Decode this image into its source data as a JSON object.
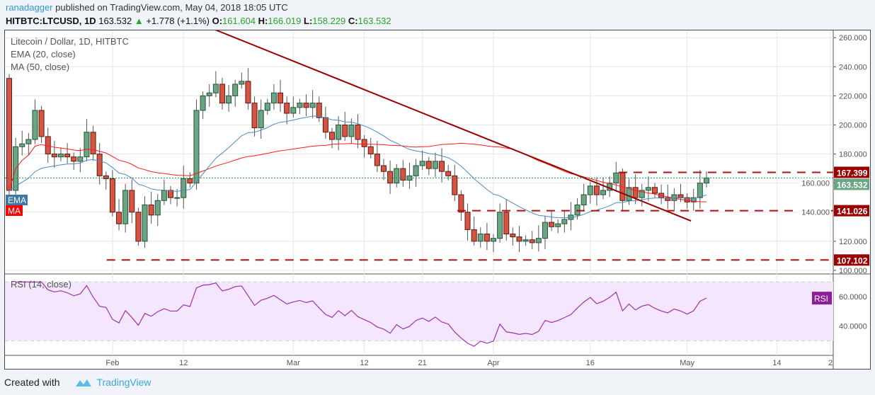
{
  "header": {
    "author": "ranadagger",
    "published": "published on TradingView.com, May 04, 2018 18:05 UTC",
    "symbol": "HITBTC:LTCUSD, 1D",
    "last": "163.532",
    "change": "+1.778 (+1.1%)",
    "o_label": "O:",
    "o": "161.604",
    "h_label": "H:",
    "h": "166.019",
    "l_label": "L:",
    "l": "158.229",
    "c_label": "C:",
    "c": "163.532"
  },
  "legend": {
    "title": "Litecoin / Dollar, 1D, HITBTC",
    "ema": "EMA (20, close)",
    "ma": "MA (50, close)",
    "ema_tag": "EMA",
    "ma_tag": "MA",
    "rsi": "RSI (14, close)",
    "rsi_tag": "RSI"
  },
  "footer": {
    "created": "Created with",
    "brand": "TradingView"
  },
  "colors": {
    "up": "#6ba583",
    "down": "#d75442",
    "ema": "#4a8ac2",
    "ma": "#ff1a1a",
    "level": "#b01010",
    "trend": "#990000",
    "rsi": "#a030b0"
  },
  "chart_data": {
    "type": "candlestick",
    "first_open": 232,
    "closes": [
      155,
      185,
      187,
      190,
      210,
      192,
      180,
      178,
      180,
      178,
      175,
      178,
      195,
      180,
      165,
      163,
      140,
      132,
      155,
      140,
      120,
      145,
      138,
      148,
      155,
      150,
      150,
      163,
      160,
      210,
      220,
      222,
      228,
      215,
      220,
      228,
      230,
      215,
      198,
      210,
      215,
      222,
      215,
      208,
      212,
      215,
      212,
      215,
      205,
      195,
      190,
      200,
      192,
      200,
      190,
      185,
      180,
      172,
      168,
      160,
      170,
      162,
      165,
      172,
      175,
      170,
      175,
      168,
      165,
      152,
      140,
      128,
      120,
      125,
      120,
      122,
      140,
      125,
      123,
      120,
      121,
      119,
      122,
      133,
      130,
      132,
      135,
      138,
      145,
      152,
      158,
      152,
      155,
      160,
      167,
      148,
      157,
      150,
      155,
      157,
      153,
      150,
      148,
      152,
      150,
      147,
      150,
      160,
      163.532
    ],
    "ylim": [
      98,
      264
    ],
    "yticks": [
      "100.000",
      "120.000",
      "140.000",
      "160.000",
      "180.000",
      "200.000",
      "220.000",
      "240.000",
      "260.000"
    ],
    "xticks": [
      {
        "label": "Feb",
        "day": 16
      },
      {
        "label": "12",
        "day": 27
      },
      {
        "label": "Mar",
        "day": 44
      },
      {
        "label": "12",
        "day": 55
      },
      {
        "label": "21",
        "day": 64
      },
      {
        "label": "Apr",
        "day": 75
      },
      {
        "label": "16",
        "day": 90
      },
      {
        "label": "May",
        "day": 105
      },
      {
        "label": "14",
        "day": 118.9
      },
      {
        "label": "2",
        "day": 127.2
      }
    ],
    "levels": [
      {
        "value": 167.399,
        "label": "167.399",
        "from_day": 94.4
      },
      {
        "value": 141.026,
        "label": "141.026",
        "from_day": 69.4
      },
      {
        "value": 107.102,
        "label": "107.102",
        "from_day": 15.1
      }
    ],
    "last_label": "163.532",
    "trendline": {
      "from": {
        "day": 31.6,
        "price": 266
      },
      "to": {
        "day": 105.6,
        "price": 134
      }
    },
    "rsi": {
      "ylim": [
        20,
        75
      ],
      "band": [
        30,
        70
      ],
      "yticks": [
        "40.0000",
        "60.0000"
      ]
    }
  }
}
